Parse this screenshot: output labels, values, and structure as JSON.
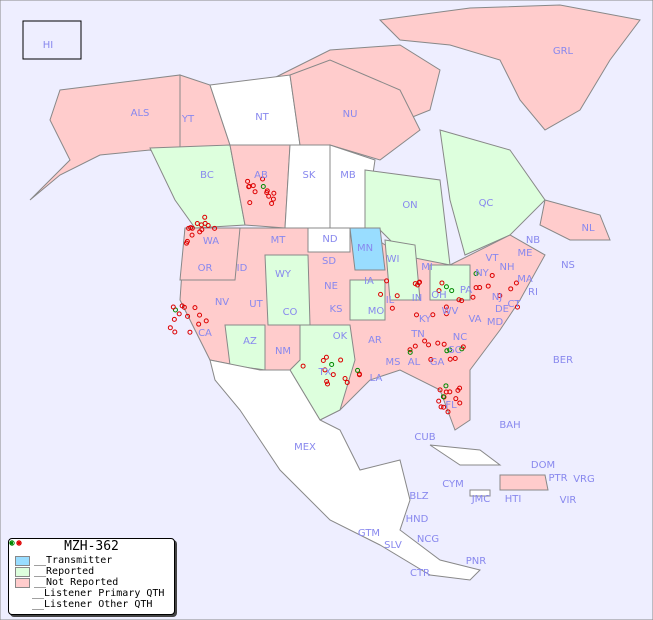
{
  "title": "MZH-362",
  "colors": {
    "ocean": "#eeeeff",
    "transmitter": "#99ddff",
    "reported": "#ddffdd",
    "not_reported": "#ffcccc",
    "unlisted": "#ffffff",
    "primary_marker": "#008800",
    "other_marker": "#dd0000"
  },
  "legend": [
    {
      "label": "__Transmitter",
      "kind": "transmitter"
    },
    {
      "label": "__Reported",
      "kind": "reported"
    },
    {
      "label": "__Not Reported",
      "kind": "not_reported"
    },
    {
      "label": "__Listener Primary QTH",
      "kind": "primary"
    },
    {
      "label": "__Listener Other QTH",
      "kind": "other"
    }
  ],
  "regions": [
    "HI",
    "ALS",
    "YT",
    "NT",
    "NU",
    "GRL",
    "BC",
    "AB",
    "SK",
    "MB",
    "ON",
    "QC",
    "NL",
    "NB",
    "NS",
    "WA",
    "OR",
    "ID",
    "MT",
    "WY",
    "ND",
    "SD",
    "NE",
    "MN",
    "WI",
    "IA",
    "IL",
    "MI",
    "IN",
    "OH",
    "PA",
    "NY",
    "VT",
    "NH",
    "ME",
    "MA",
    "CT",
    "RI",
    "NJ",
    "DE",
    "MD",
    "WV",
    "VA",
    "KY",
    "TN",
    "NC",
    "SC",
    "GA",
    "FL",
    "AL",
    "MS",
    "LA",
    "AR",
    "MO",
    "KS",
    "OK",
    "TX",
    "NM",
    "AZ",
    "CO",
    "UT",
    "NV",
    "CA",
    "MEX",
    "CUB",
    "BAH",
    "BER",
    "DOM",
    "PTR",
    "VRG",
    "VIR",
    "CYM",
    "JMC",
    "HTI",
    "BLZ",
    "HND",
    "GTM",
    "SLV",
    "NCG",
    "CTR",
    "PNR"
  ]
}
